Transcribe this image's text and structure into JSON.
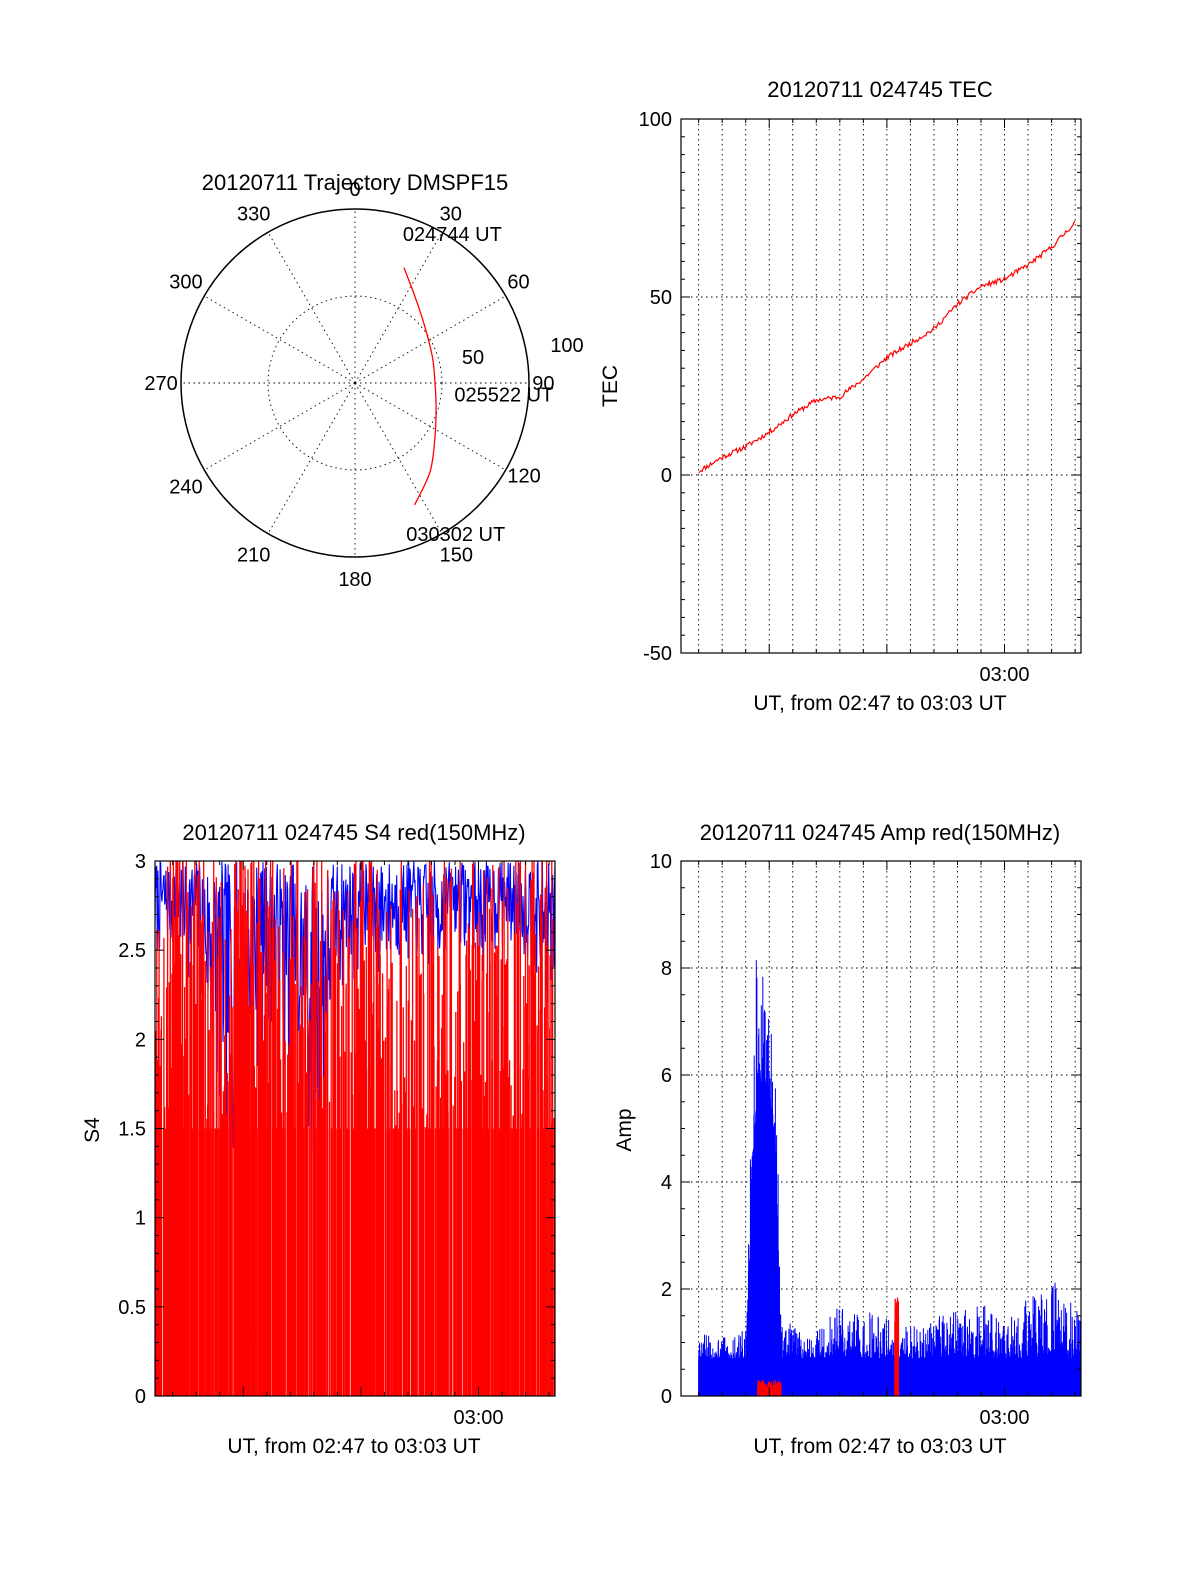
{
  "colors": {
    "red_channel": "#ff0000",
    "blue_channel": "#0000ff",
    "axes": "#000000",
    "background": "#ffffff"
  },
  "chart_data": [
    {
      "id": "trajectory",
      "type": "polar",
      "title": "20120711 Trajectory DMSPF15",
      "azimuth_ticks": [
        0,
        30,
        60,
        90,
        120,
        150,
        180,
        210,
        240,
        270,
        300,
        330
      ],
      "radial_rings": [
        50,
        100
      ],
      "radial_tick_labels": [
        "50",
        "100"
      ],
      "radial_axis": "zenith distance (90 - elevation)",
      "grid": true,
      "series": [
        {
          "color": "#ff0000",
          "points_az_el": [
            [
              23,
              18
            ],
            [
              34,
              29
            ],
            [
              50,
              38
            ],
            [
              71,
              43
            ],
            [
              90,
              44
            ],
            [
              108,
              41
            ],
            [
              125,
              34
            ],
            [
              140,
              23
            ],
            [
              154,
              12
            ]
          ]
        }
      ],
      "annotations": [
        {
          "text": "024744 UT",
          "az": 25,
          "zd": 95
        },
        {
          "text": "025522 UT",
          "az": 95,
          "zd": 70
        },
        {
          "text": "030302 UT",
          "az": 154,
          "zd": 96
        }
      ]
    },
    {
      "id": "tec",
      "type": "line",
      "title": "20120711 024745 TEC",
      "xlabel": "UT, from 02:47 to 03:03 UT",
      "ylabel": "TEC",
      "x_range": [
        "02:46:15",
        "03:03:15"
      ],
      "x_tick_labels": [
        {
          "t": "03:00",
          "label": "03:00"
        }
      ],
      "x_grid_step_seconds": 60,
      "ylim": [
        -50,
        100
      ],
      "y_ticks": [
        -50,
        0,
        50,
        100
      ],
      "grid": true,
      "series": [
        {
          "color": "#ff0000",
          "x": [
            "02:47:00",
            "02:48:00",
            "02:49:00",
            "02:50:00",
            "02:51:00",
            "02:52:00",
            "02:53:00",
            "02:54:00",
            "02:55:00",
            "02:56:00",
            "02:57:00",
            "02:58:00",
            "02:59:00",
            "03:00:00",
            "03:01:00",
            "03:02:00",
            "03:03:00"
          ],
          "y": [
            1,
            5,
            8,
            12,
            17,
            21,
            22,
            27,
            33,
            37,
            41,
            48,
            53,
            55,
            59,
            64,
            71
          ]
        }
      ]
    },
    {
      "id": "s4",
      "type": "line",
      "title": "20120711 024745 S4 red(150MHz)",
      "xlabel": "UT, from 02:47 to 03:03 UT",
      "ylabel": "S4",
      "x_range": [
        "02:46:15",
        "03:03:15"
      ],
      "x_tick_labels": [
        {
          "t": "03:00",
          "label": "03:00"
        }
      ],
      "ylim": [
        0,
        3
      ],
      "y_ticks": [
        0,
        0.5,
        1,
        1.5,
        2,
        2.5,
        3
      ],
      "y_tick_labels": [
        "0",
        "0.5",
        "1",
        "1.5",
        "2",
        "2.5",
        "3"
      ],
      "grid": false,
      "series": [
        {
          "color": "#0000ff",
          "name": "",
          "description_values": "fluctuating 0 to 3, mostly 2.3 to 3 in the upper band, short segment near 0.35 at about 02:50"
        },
        {
          "color": "#ff0000",
          "name": "",
          "description_values": "dense near-vertical excursions between 0 and 3 across the whole interval"
        }
      ],
      "blue_envelope": {
        "x": [
          "02:47:00",
          "02:48:00",
          "02:49:00",
          "02:50:00",
          "02:51:00",
          "02:52:00",
          "02:53:00",
          "02:54:00",
          "02:55:00",
          "02:56:00",
          "02:57:00",
          "02:58:00",
          "02:59:00",
          "03:00:00",
          "03:01:00",
          "03:02:00",
          "03:03:00"
        ],
        "low": [
          2.4,
          2.3,
          1.4,
          1.2,
          2.0,
          1.5,
          0.9,
          2.2,
          2.3,
          2.3,
          2.4,
          2.2,
          2.5,
          2.3,
          2.5,
          2.4,
          2.1
        ],
        "high": [
          3,
          3,
          3,
          3,
          3,
          3,
          3,
          3,
          3,
          3,
          3,
          3,
          3,
          3,
          3,
          3,
          3
        ]
      },
      "blue_low_segment": {
        "x": [
          "02:50:00",
          "02:50:30"
        ],
        "y": [
          0.35,
          0.32
        ]
      }
    },
    {
      "id": "amp",
      "type": "line",
      "title": "20120711 024745 Amp red(150MHz)",
      "xlabel": "UT, from 02:47 to 03:03 UT",
      "ylabel": "Amp",
      "x_range": [
        "02:46:15",
        "03:03:15"
      ],
      "x_tick_labels": [
        {
          "t": "03:00",
          "label": "03:00"
        }
      ],
      "x_grid_step_seconds": 60,
      "ylim": [
        0,
        10
      ],
      "y_ticks": [
        0,
        2,
        4,
        6,
        8,
        10
      ],
      "grid": true,
      "series": [
        {
          "color": "#0000ff",
          "x": [
            "02:47:00",
            "02:48:00",
            "02:49:00",
            "02:49:30",
            "02:50:00",
            "02:50:15",
            "02:50:30",
            "02:51:00",
            "02:52:00",
            "02:53:00",
            "02:54:00",
            "02:55:00",
            "02:56:00",
            "02:57:00",
            "02:58:00",
            "02:59:00",
            "03:00:00",
            "03:01:00",
            "03:02:00",
            "03:03:00"
          ],
          "y_max": [
            1.2,
            1.1,
            1.3,
            9.3,
            7.0,
            6.8,
            1.6,
            1.3,
            1.2,
            1.7,
            1.6,
            1.5,
            1.3,
            1.5,
            1.6,
            1.8,
            1.3,
            1.9,
            2.2,
            1.7
          ],
          "y_base": [
            0.7,
            0.7,
            0.7,
            6.0,
            5.6,
            4.8,
            0.7,
            0.7,
            0.7,
            0.7,
            0.7,
            0.7,
            0.7,
            0.7,
            0.7,
            0.7,
            0.7,
            0.7,
            0.7,
            0.7
          ]
        },
        {
          "color": "#ff0000",
          "segments": [
            {
              "x": [
                "02:49:30",
                "02:50:30"
              ],
              "y_max": 0.3
            },
            {
              "x": [
                "02:55:20",
                "02:55:30"
              ],
              "y_max": 1.9
            }
          ]
        }
      ]
    }
  ]
}
